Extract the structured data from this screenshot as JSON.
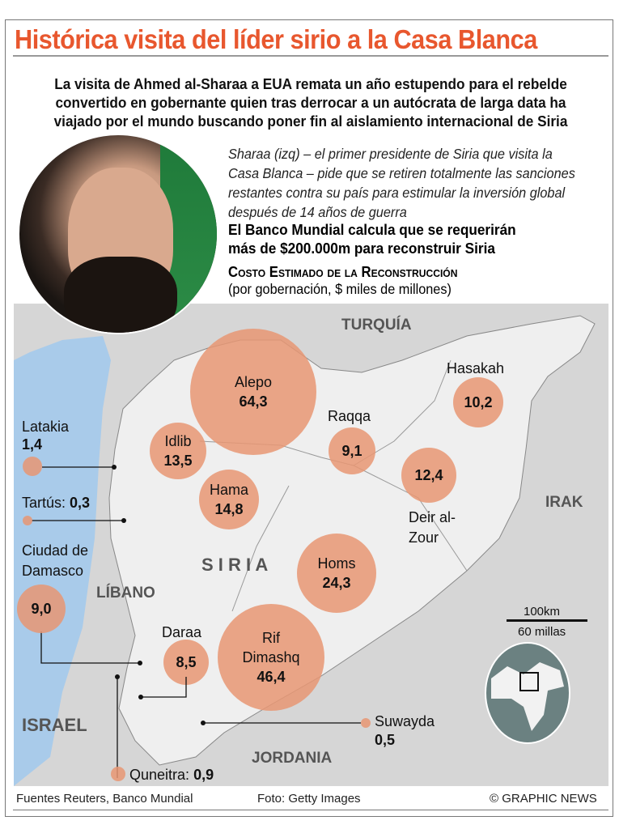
{
  "title": "Histórica visita del líder sirio a la Casa Blanca",
  "intro": "La visita de Ahmed al-Sharaa a EUA remata un año estupendo para el rebelde convertido en gobernante quien tras derrocar a un autócrata de larga data ha viajado por el mundo buscando poner fin al aislamiento internacional de Siria",
  "caption": "Sharaa (izq) – el primer presidente de Siria que visita la Casa Blanca – pide que se retiren totalmente las sanciones restantes contra su país para estimular la inversión global después de 14 años de guerra",
  "bank_note": "El Banco Mundial calcula que se requerirán más de $200.000m para reconstruir Siria",
  "cost_heading": "Costo Estimado de la Reconstrucción",
  "cost_subheading": "(por gobernación, $ miles de millones)",
  "colors": {
    "title": "#e8572e",
    "bubble": "#e89673",
    "sea": "#a9cbea",
    "land": "#d6d6d6",
    "syria": "#efefef"
  },
  "map": {
    "countries": {
      "turkey": "TURQUÍA",
      "iraq": "IRAK",
      "syria": "S I R I A",
      "lebanon": "LÍBANO",
      "israel": "ISRAEL",
      "jordan": "JORDANIA"
    },
    "governorates": [
      {
        "name": "Alepo",
        "value": "64,3"
      },
      {
        "name": "Idlib",
        "value": "13,5"
      },
      {
        "name": "Hama",
        "value": "14,8"
      },
      {
        "name": "Raqqa",
        "value": "9,1"
      },
      {
        "name": "Hasakah",
        "value": "10,2"
      },
      {
        "name": "Deir al-Zour",
        "value": "12,4"
      },
      {
        "name": "Homs",
        "value": "24,3"
      },
      {
        "name": "Rif Dimashq",
        "value": "46,4"
      },
      {
        "name": "Daraa",
        "value": "8,5"
      },
      {
        "name": "Latakia",
        "value": "1,4"
      },
      {
        "name": "Tartús:",
        "value": "0,3"
      },
      {
        "name": "Ciudad de Damasco",
        "value": "9,0"
      },
      {
        "name": "Suwayda",
        "value": "0,5"
      },
      {
        "name": "Quneitra:",
        "value": "0,9"
      }
    ],
    "scale": {
      "km": "100km",
      "miles": "60 millas"
    }
  },
  "footer": {
    "sources": "Fuentes Reuters, Banco Mundial",
    "photo": "Foto: Getty Images",
    "credit": "© GRAPHIC NEWS"
  }
}
